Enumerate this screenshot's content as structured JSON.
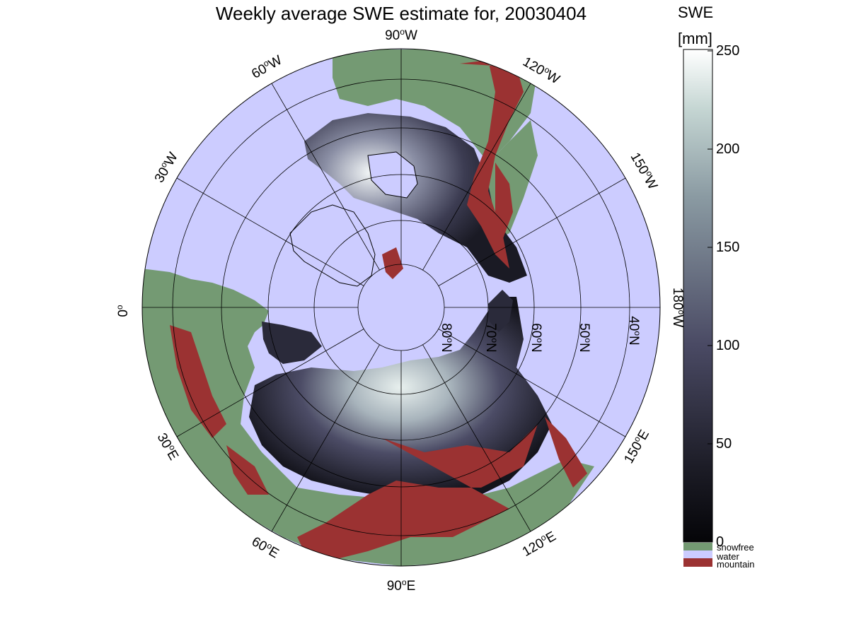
{
  "title": "Weekly average SWE estimate for, 20030404",
  "colorbar": {
    "title_line1": "SWE",
    "title_line2": "[mm]",
    "ticks": [
      "0",
      "50",
      "100",
      "150",
      "200",
      "250"
    ],
    "legend": [
      {
        "label": "snowfree",
        "color": "#749a73"
      },
      {
        "label": "water",
        "color": "#ccccff"
      },
      {
        "label": "mountain",
        "color": "#9b3232"
      }
    ]
  },
  "meridian_labels": [
    {
      "base": "90",
      "sup": "o",
      "dir": "W"
    },
    {
      "base": "120",
      "sup": "o",
      "dir": "W"
    },
    {
      "base": "150",
      "sup": "o",
      "dir": "W"
    },
    {
      "base": "180",
      "sup": "o",
      "dir": "W"
    },
    {
      "base": "150",
      "sup": "o",
      "dir": "E"
    },
    {
      "base": "120",
      "sup": "o",
      "dir": "E"
    },
    {
      "base": "90",
      "sup": "o",
      "dir": "E"
    },
    {
      "base": "60",
      "sup": "o",
      "dir": "E"
    },
    {
      "base": "30",
      "sup": "o",
      "dir": "E"
    },
    {
      "base": "0",
      "sup": "o",
      "dir": ""
    },
    {
      "base": "30",
      "sup": "o",
      "dir": "W"
    },
    {
      "base": "60",
      "sup": "o",
      "dir": "W"
    }
  ],
  "parallel_labels": [
    {
      "base": "80",
      "sup": "o",
      "dir": "N"
    },
    {
      "base": "70",
      "sup": "o",
      "dir": "N"
    },
    {
      "base": "60",
      "sup": "o",
      "dir": "N"
    },
    {
      "base": "50",
      "sup": "o",
      "dir": "N"
    },
    {
      "base": "40",
      "sup": "o",
      "dir": "N"
    }
  ],
  "colors": {
    "water": "#ccccff",
    "snowfree": "#749a73",
    "mountain": "#9b3232",
    "swe_low": "#0a0a10",
    "swe_mid": "#4a4a66",
    "swe_high": "#ffffff"
  }
}
